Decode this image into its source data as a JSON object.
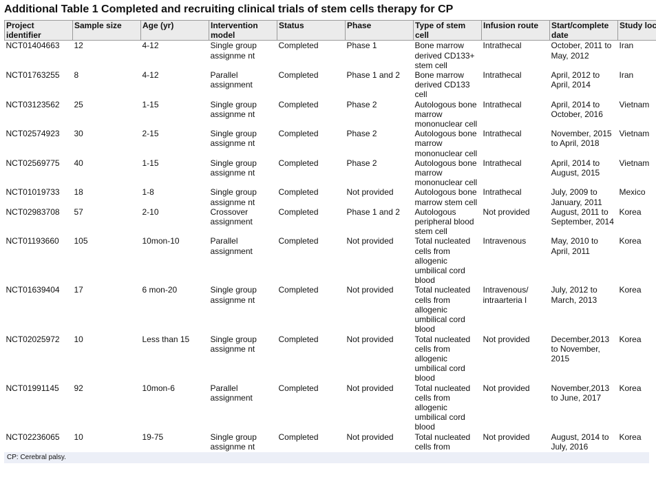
{
  "title": "Additional Table 1 Completed and recruiting clinical trials of stem cells therapy for CP",
  "table": {
    "header": [
      "Project identifier",
      "Sample size",
      "Age (yr)",
      "Intervention model",
      "Status",
      "Phase",
      "Type of stem cell",
      "Infusion route",
      "Start/complete date",
      "Study location"
    ],
    "rows": [
      [
        "NCT01404663",
        "12",
        "4-12",
        "Single group assignme nt",
        "Completed",
        "Phase 1",
        "Bone marrow derived CD133+ stem cell",
        "Intrathecal",
        "October, 2011 to May, 2012",
        "Iran"
      ],
      [
        "NCT01763255",
        "8",
        "4-12",
        "Parallel assignment",
        "Completed",
        "Phase 1 and 2",
        "Bone marrow derived CD133 cell",
        "Intrathecal",
        "April, 2012 to April, 2014",
        "Iran"
      ],
      [
        "NCT03123562",
        "25",
        "1-15",
        "Single group assignme nt",
        "Completed",
        "Phase 2",
        "Autologous bone marrow mononuclear cell",
        "Intrathecal",
        "April, 2014 to October, 2016",
        "Vietnam"
      ],
      [
        "NCT02574923",
        "30",
        "2-15",
        "Single group assignme nt",
        "Completed",
        "Phase 2",
        "Autologous bone marrow mononuclear cell",
        "Intrathecal",
        "November, 2015 to April, 2018",
        "Vietnam"
      ],
      [
        "NCT02569775",
        "40",
        "1-15",
        "Single group assignme nt",
        "Completed",
        "Phase 2",
        "Autologous bone marrow mononuclear cell",
        "Intrathecal",
        "April, 2014 to August, 2015",
        "Vietnam"
      ],
      [
        "NCT01019733",
        "18",
        "1-8",
        "Single group assignme nt",
        "Completed",
        "Not provided",
        "Autologous bone marrow stem cell",
        "Intrathecal",
        "July, 2009 to January, 2011",
        "Mexico"
      ],
      [
        "NCT02983708",
        "57",
        "2-10",
        "Crossover assignment",
        "Completed",
        "Phase 1 and 2",
        "Autologous peripheral blood stem cell",
        "Not provided",
        "August, 2011 to September, 2014",
        "Korea"
      ],
      [
        "NCT01193660",
        "105",
        "10mon-10",
        "Parallel assignment",
        "Completed",
        "Not provided",
        "Total nucleated cells from allogenic umbilical cord blood",
        "Intravenous",
        "May, 2010 to April, 2011",
        "Korea"
      ],
      [
        "NCT01639404",
        "17",
        "6 mon-20",
        "Single group assignme nt",
        "Completed",
        "Not provided",
        "Total nucleated cells from allogenic umbilical cord blood",
        "Intravenous/ intraarteria l",
        "July, 2012 to March, 2013",
        "Korea"
      ],
      [
        "NCT02025972",
        "10",
        "Less than 15",
        "Single group assignme nt",
        "Completed",
        "Not provided",
        "Total nucleated cells from allogenic umbilical cord blood",
        "Not provided",
        "December,2013 to November, 2015",
        "Korea"
      ],
      [
        "NCT01991145",
        "92",
        "10mon-6",
        "Parallel assignment",
        "Completed",
        "Not provided",
        "Total nucleated cells from allogenic umbilical cord blood",
        "Not provided",
        "November,2013 to June, 2017",
        "Korea"
      ],
      [
        "NCT02236065",
        "10",
        "19-75",
        "Single group assignme nt",
        "Completed",
        "Not provided",
        "Total nucleated cells from",
        "Not provided",
        "August, 2014 to July, 2016",
        "Korea"
      ]
    ]
  },
  "footnote": "CP: Cerebral palsy."
}
